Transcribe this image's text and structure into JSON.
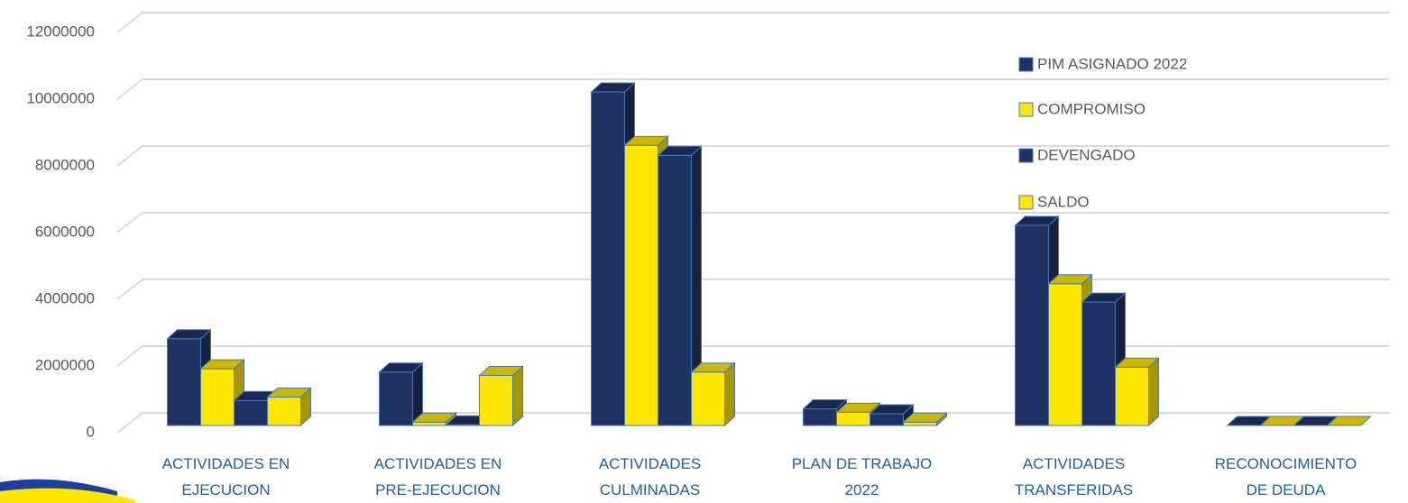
{
  "chart_data": {
    "type": "bar3d",
    "categories": [
      "ACTIVIDADES EN EJECUCION",
      "ACTIVIDADES EN PRE-EJECUCION",
      "ACTIVIDADES CULMINADAS",
      "PLAN DE TRABAJO 2022",
      "ACTIVIDADES TRANSFERIDAS",
      "RECONOCIMIENTO DE DEUDA"
    ],
    "series": [
      {
        "name": "PIM ASIGNADO 2022",
        "color": "#1f3264",
        "values": [
          2600000,
          1600000,
          10000000,
          500000,
          6000000,
          0
        ]
      },
      {
        "name": "COMPROMISO",
        "color": "#ffe600",
        "values": [
          1700000,
          100000,
          8400000,
          400000,
          4250000,
          0
        ]
      },
      {
        "name": "DEVENGADO",
        "color": "#1f3264",
        "values": [
          750000,
          20000,
          8100000,
          350000,
          3700000,
          0
        ]
      },
      {
        "name": "SALDO",
        "color": "#ffe600",
        "values": [
          850000,
          1500000,
          1600000,
          100000,
          1750000,
          0
        ]
      }
    ],
    "ylim": [
      0,
      12000000
    ],
    "yticks": [
      0,
      2000000,
      4000000,
      6000000,
      8000000,
      10000000,
      12000000
    ],
    "grid": true,
    "legend": "right"
  }
}
